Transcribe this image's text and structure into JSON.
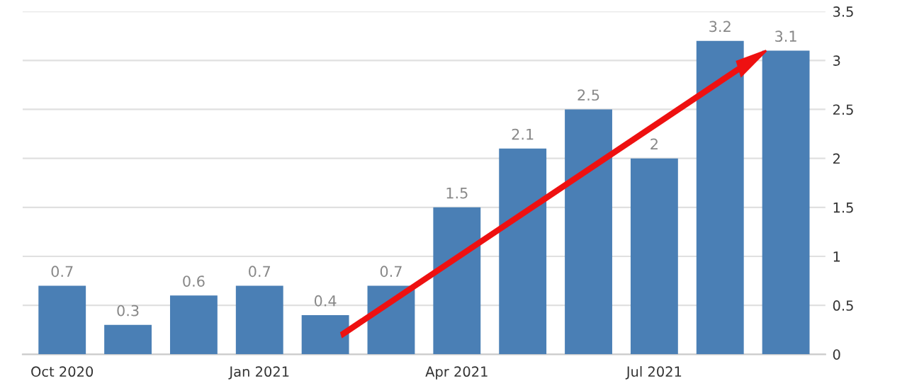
{
  "chart_data": {
    "type": "bar",
    "categories": [
      "Oct 2020",
      null,
      null,
      "Jan 2021",
      null,
      null,
      "Apr 2021",
      null,
      null,
      "Jul 2021",
      null,
      null
    ],
    "values": [
      0.7,
      0.3,
      0.6,
      0.7,
      0.4,
      0.7,
      1.5,
      2.1,
      2.5,
      2,
      3.2,
      3.1
    ],
    "color": "#4a7fb5",
    "ylim": [
      0,
      3.5
    ],
    "yticks": [
      0,
      0.5,
      1,
      1.5,
      2,
      2.5,
      3,
      3.5
    ],
    "grid": "y",
    "data_labels": true
  }
}
